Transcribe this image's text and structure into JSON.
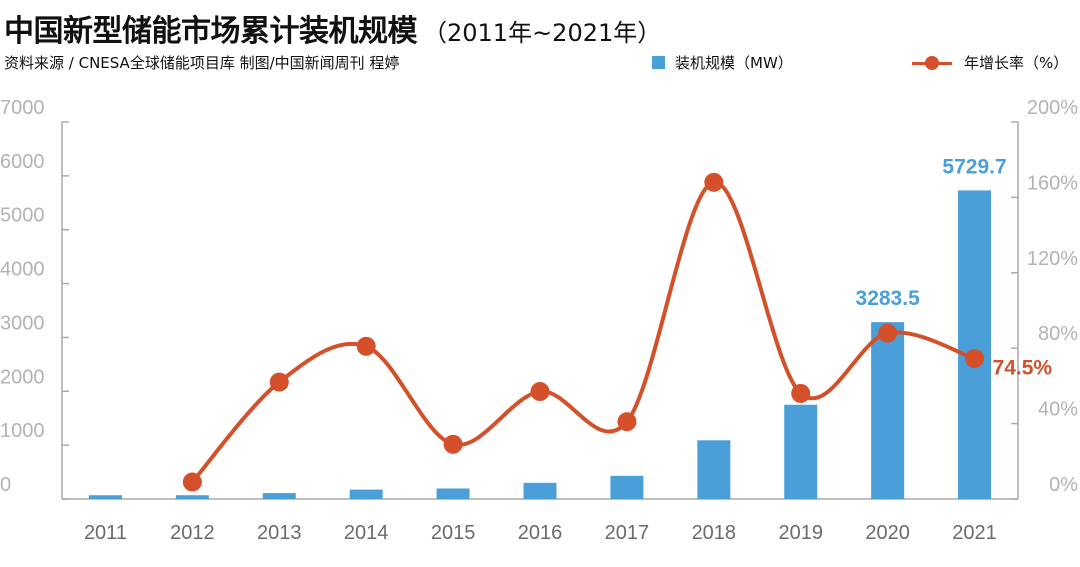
{
  "header": {
    "title": "中国新型储能市场累计装机规模",
    "title_years": "（2011年~2021年）",
    "source": "资料来源 / CNESA全球储能项目库    制图/中国新闻周刊 程婷"
  },
  "legend": {
    "bar_label": "装机规模（MW）",
    "line_label": "年增长率（%）"
  },
  "colors": {
    "bar": "#4a9fd9",
    "line": "#d4502a",
    "axis": "#aaaaaa"
  },
  "chart_data": {
    "type": "bar+line",
    "categories": [
      "2011",
      "2012",
      "2013",
      "2014",
      "2015",
      "2016",
      "2017",
      "2018",
      "2019",
      "2020",
      "2021"
    ],
    "series": [
      {
        "name": "装机规模（MW）",
        "type": "bar",
        "axis": "left",
        "values": [
          70,
          70,
          110,
          175,
          195,
          300,
          430,
          1090,
          1750,
          3283.5,
          5729.7
        ]
      },
      {
        "name": "年增长率（%）",
        "type": "line",
        "axis": "right",
        "values": [
          null,
          9,
          62,
          81,
          null,
          57,
          41,
          168,
          56,
          88,
          74.5
        ]
      }
    ],
    "left_axis": {
      "ylim": [
        0,
        7000
      ],
      "ticks": [
        "0",
        "1000",
        "2000",
        "3000",
        "4000",
        "5000",
        "6000",
        "7000"
      ]
    },
    "right_axis": {
      "ylim": [
        0,
        200
      ],
      "ticks": [
        "0%",
        "40%",
        "80%",
        "120%",
        "160%",
        "200%"
      ]
    },
    "data_labels": [
      {
        "series": 0,
        "index": 9,
        "text": "3283.5"
      },
      {
        "series": 0,
        "index": 10,
        "text": "5729.7"
      },
      {
        "series": 1,
        "index": 10,
        "text": "74.5%"
      }
    ],
    "extra_points": [
      {
        "series": 1,
        "index": 4,
        "value": 29
      }
    ],
    "grid": false,
    "legend_position": "top-right"
  }
}
